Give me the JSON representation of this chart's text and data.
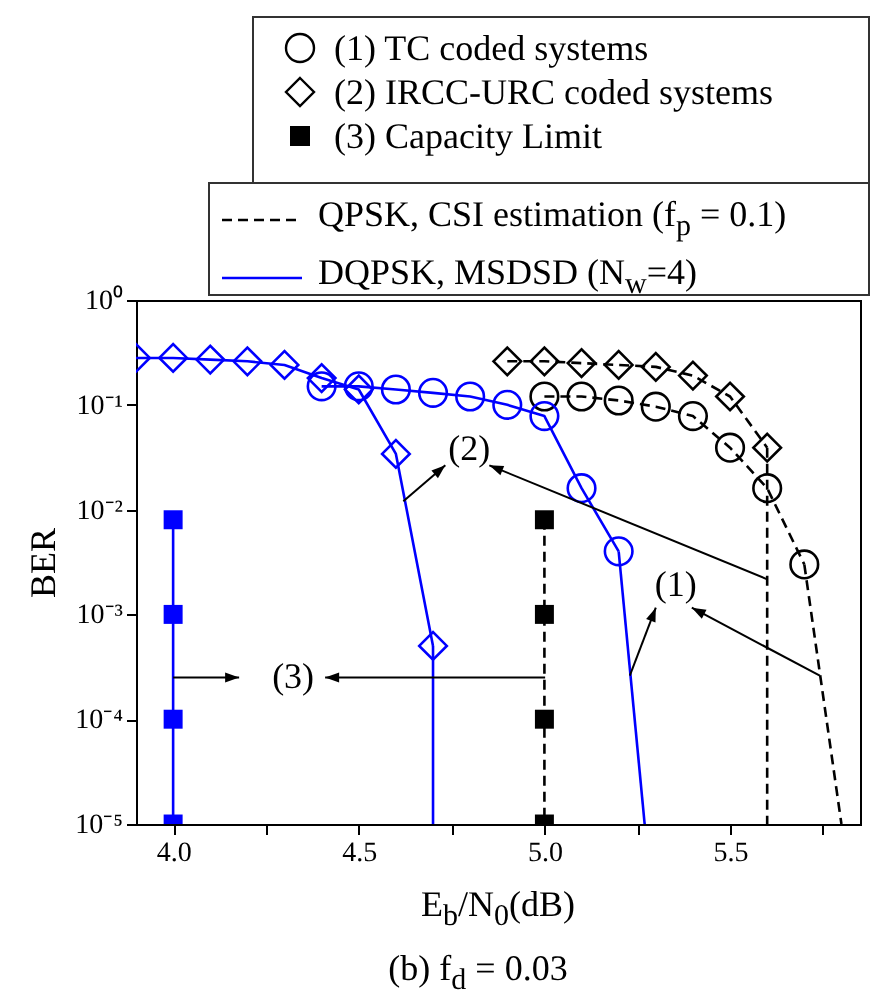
{
  "chart_data": {
    "type": "line",
    "title": "(b) f$_{d}$ = 0.03",
    "xlabel": "E$_{b}$/N$_{0}$(dB)",
    "ylabel": "BER",
    "log": "y",
    "grid": false,
    "xlim": [
      3.9,
      5.85
    ],
    "xticks": [
      {
        "value": 4,
        "label": "4.0"
      },
      {
        "value": 4.25,
        "label": null
      },
      {
        "value": 4.5,
        "label": "4.5"
      },
      {
        "value": 4.75,
        "label": null
      },
      {
        "value": 5,
        "label": "5.0"
      },
      {
        "value": 5.25,
        "label": null
      },
      {
        "value": 5.5,
        "label": "5.5"
      },
      {
        "value": 5.75,
        "label": null
      }
    ],
    "ylim": [
      1e-05,
      1
    ],
    "yticks": [
      {
        "value": 1e-05,
        "label": "10⁻⁵"
      },
      {
        "value": 0.0001,
        "label": "10⁻⁴"
      },
      {
        "value": 0.001,
        "label": "10⁻³"
      },
      {
        "value": 0.01,
        "label": "10⁻²"
      },
      {
        "value": 0.1,
        "label": "10⁻¹"
      },
      {
        "value": 1,
        "label": "10⁰"
      }
    ],
    "series": [
      {
        "color": "#000000",
        "line_style": "dashed",
        "marker": "circle",
        "x": [
          5.0,
          5.1,
          5.2,
          5.3,
          5.4,
          5.5,
          5.6,
          5.7
        ],
        "values": [
          0.12,
          0.12,
          0.11,
          0.096,
          0.078,
          0.039,
          0.016,
          0.003
        ]
      },
      {
        "color": "#000000",
        "line_style": "dashed",
        "marker": "diamond",
        "x": [
          4.9,
          5.0,
          5.1,
          5.2,
          5.3,
          5.4,
          5.5,
          5.6
        ],
        "values": [
          0.26,
          0.26,
          0.25,
          0.24,
          0.23,
          0.19,
          0.12,
          0.039
        ]
      },
      {
        "color": "#0000ff",
        "line_style": "solid",
        "marker": "circle",
        "x": [
          4.4,
          4.5,
          4.6,
          4.7,
          4.8,
          4.9,
          5.0,
          5.1,
          5.2
        ],
        "values": [
          0.15,
          0.15,
          0.14,
          0.13,
          0.12,
          0.1,
          0.078,
          0.016,
          0.004
        ]
      },
      {
        "color": "#0000ff",
        "line_style": "solid",
        "marker": "diamond",
        "x": [
          3.9,
          4.0,
          4.1,
          4.2,
          4.3,
          4.4,
          4.5,
          4.6,
          4.7
        ],
        "values": [
          0.28,
          0.28,
          0.27,
          0.26,
          0.24,
          0.18,
          0.14,
          0.034,
          0.0005
        ]
      },
      {
        "color": "#000000",
        "line_style": "dashed",
        "marker": "square",
        "x": [
          5.0,
          5.0,
          5.0,
          5.0
        ],
        "values": [
          0.008,
          0.001,
          0.0001,
          1e-05
        ]
      },
      {
        "color": "#0000ff",
        "line_style": "solid",
        "marker": "square",
        "x": [
          4.0,
          4.0,
          4.0,
          4.0
        ],
        "values": [
          0.008,
          0.001,
          0.0001,
          1e-05
        ]
      },
      {
        "color": "#000000",
        "line_style": "dashed",
        "marker": "none",
        "x": [
          5.7,
          5.8
        ],
        "values": [
          0.003,
          1e-05
        ]
      },
      {
        "color": "#000000",
        "line_style": "dashed",
        "marker": "none",
        "x": [
          5.6,
          5.6
        ],
        "values": [
          0.039,
          1e-05
        ]
      },
      {
        "color": "#0000ff",
        "line_style": "solid",
        "marker": "none",
        "x": [
          5.2,
          5.27
        ],
        "values": [
          0.004,
          1e-05
        ]
      },
      {
        "color": "#0000ff",
        "line_style": "solid",
        "marker": "none",
        "x": [
          4.7,
          4.7
        ],
        "values": [
          0.0005,
          1e-05
        ]
      }
    ],
    "annotations": [
      "(1) TC coded systems",
      "(2) IRCC-URC coded systems",
      "(3) Capacity Limit",
      "QPSK, CSI estimation (f$_{p}$ = 0.1)",
      "DQPSK, MSDSD (N$_{w}$=4)",
      {
        "text": "(1)",
        "x": 5.23,
        "y": 0.00026
      },
      {
        "text": "(2)",
        "x": 4.62,
        "y": 0.012
      },
      {
        "text": "(3)",
        "x": 4.0,
        "y": 0.00025
      }
    ]
  }
}
